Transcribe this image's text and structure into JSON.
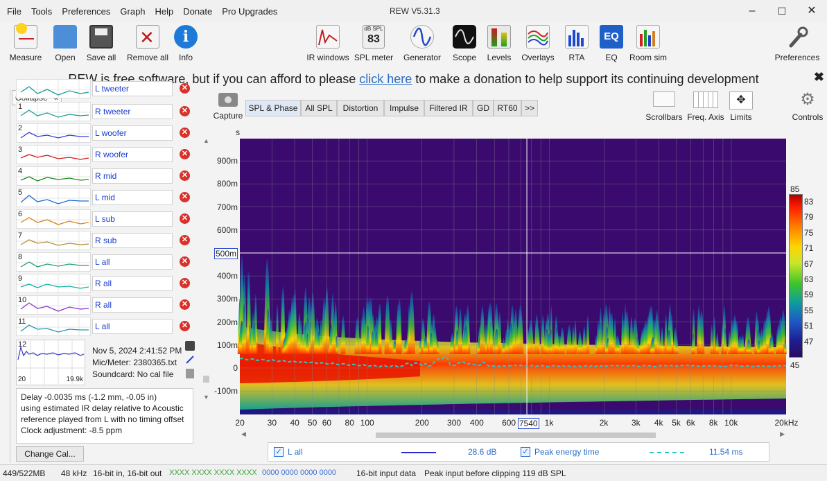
{
  "window": {
    "title": "REW V5.31.3"
  },
  "menu": [
    "File",
    "Tools",
    "Preferences",
    "Graph",
    "Help",
    "Donate",
    "Pro Upgrades"
  ],
  "toolbar": {
    "left": [
      "Measure",
      "Open",
      "Save all",
      "Remove all",
      "Info"
    ],
    "center": [
      "IR windows",
      "SPL meter",
      "Generator",
      "Scope",
      "Levels",
      "Overlays",
      "RTA",
      "EQ",
      "Room sim"
    ],
    "right": [
      "Preferences"
    ],
    "spl_meter_small": "dB SPL",
    "spl_meter_value": "83"
  },
  "banner": {
    "before": "REW is free software, but if you can afford to please",
    "link": "click here",
    "after": "to make a donation to help support its continuing development"
  },
  "leftpanel": {
    "collapse_label": "Collapse",
    "measurements": [
      {
        "num": "",
        "name": "L tweeter",
        "color": "#1a9a9a"
      },
      {
        "num": "1",
        "name": "R tweeter",
        "color": "#1a9a9a"
      },
      {
        "num": "2",
        "name": "L woofer",
        "color": "#3a3ad0"
      },
      {
        "num": "3",
        "name": "R woofer",
        "color": "#d01818"
      },
      {
        "num": "4",
        "name": "R mid",
        "color": "#1a8a1a"
      },
      {
        "num": "5",
        "name": "L mid",
        "color": "#1a6ad0"
      },
      {
        "num": "6",
        "name": "L sub",
        "color": "#e08010"
      },
      {
        "num": "7",
        "name": "R sub",
        "color": "#b09030"
      },
      {
        "num": "8",
        "name": "L all",
        "color": "#1aa070"
      },
      {
        "num": "9",
        "name": "R all",
        "color": "#10b0a0"
      },
      {
        "num": "10",
        "name": "R all",
        "color": "#8a30d0"
      },
      {
        "num": "11",
        "name": "L all",
        "color": "#1a9ab0"
      }
    ],
    "selected": {
      "num": "12",
      "date": "Nov 5, 2024 2:41:52 PM",
      "mic": "Mic/Meter: 2380365.txt",
      "soundcard": "Soundcard: No cal file",
      "thumb_left": "20",
      "thumb_right": "19.9k"
    },
    "notes": [
      "Delay -0.0035 ms (-1.2 mm, -0.05 in)",
      "using estimated IR delay relative to Acoustic",
      "reference played from  L with no timing offset",
      "Clock adjustment: -8.5 ppm"
    ],
    "change_cal": "Change Cal..."
  },
  "graph": {
    "capture_label": "Capture",
    "tabs": [
      "SPL & Phase",
      "All SPL",
      "Distortion",
      "Impulse",
      "Filtered IR",
      "GD",
      "RT60",
      ">>"
    ],
    "active_tab": "SPL & Phase",
    "controls": [
      "Scrollbars",
      "Freq. Axis",
      "Limits",
      "Controls"
    ],
    "y_unit": "s",
    "y_ticks": [
      "900m",
      "800m",
      "700m",
      "600m",
      "500m",
      "400m",
      "300m",
      "200m",
      "100m",
      "0",
      "-100m"
    ],
    "x_ticks": [
      "20",
      "30",
      "40",
      "50",
      "60",
      "80",
      "100",
      "200",
      "300",
      "400",
      "600",
      "7540",
      "1k",
      "2k",
      "3k",
      "4k",
      "5k",
      "6k",
      "8k",
      "10k",
      "20kHz"
    ],
    "cursor_y": "500m",
    "cursor_x": "7540",
    "colorbar_ticks": [
      "85",
      "83",
      "79",
      "75",
      "71",
      "67",
      "63",
      "59",
      "55",
      "51",
      "47",
      "45"
    ],
    "legend": {
      "name": "L all",
      "value": "28.6 dB",
      "peak_label": "Peak energy time",
      "peak_value": "11.54 ms",
      "line_color": "#2a2ad0",
      "peak_color": "#2ac8c8"
    }
  },
  "status": [
    "449/522MB",
    "48 kHz",
    "16-bit in, 16-bit out",
    "XXXX XXXX  XXXX XXXX",
    "0000 0000  0000 0000",
    "16-bit input data",
    "Peak input before clipping 119 dB SPL"
  ]
}
